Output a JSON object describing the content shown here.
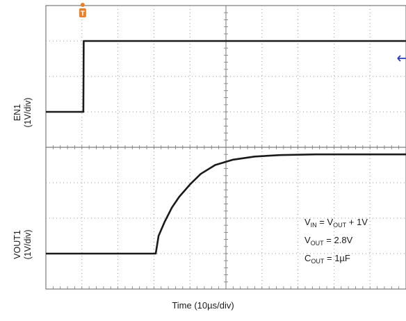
{
  "chart_data": {
    "type": "line",
    "title": "",
    "xlabel": "Time (10µs/div)",
    "x_unit": "µs",
    "x_per_div": 10,
    "x_divisions": 10,
    "y_per_div": 1,
    "y_divisions": 8,
    "grid": true,
    "trigger_marker": "T",
    "series": [
      {
        "name": "EN1",
        "axis_label_line1": "EN1",
        "axis_label_line2": "(1V/div)",
        "color": "#1a1a1a",
        "x": [
          0,
          10.4,
          10.5,
          100
        ],
        "y": [
          0,
          0,
          2,
          2
        ]
      },
      {
        "name": "VOUT1",
        "axis_label_line1": "VOUT1",
        "axis_label_line2": "(1V/div)",
        "color": "#1a1a1a",
        "x": [
          0,
          30.5,
          31.3,
          33,
          35,
          37,
          40,
          43,
          47,
          52,
          58,
          65,
          75,
          100
        ],
        "y": [
          0,
          0,
          0.5,
          0.9,
          1.3,
          1.6,
          1.95,
          2.25,
          2.5,
          2.65,
          2.74,
          2.78,
          2.8,
          2.8
        ]
      }
    ]
  },
  "annotations": {
    "line1": {
      "v": "V",
      "sub_in": "IN",
      "eq": " = V",
      "sub_out": "OUT",
      "rest": " + 1V"
    },
    "line2": {
      "v": "V",
      "sub": "OUT",
      "rest": " = 2.8V"
    },
    "line3": {
      "c": "C",
      "sub": "OUT",
      "rest": " = 1µF"
    }
  },
  "colors": {
    "trace": "#1a1a1a",
    "grid": "#9a9a9a",
    "frame": "#7a7a7a",
    "trigger": "#e8822a",
    "level_marker": "#2a3db8"
  }
}
